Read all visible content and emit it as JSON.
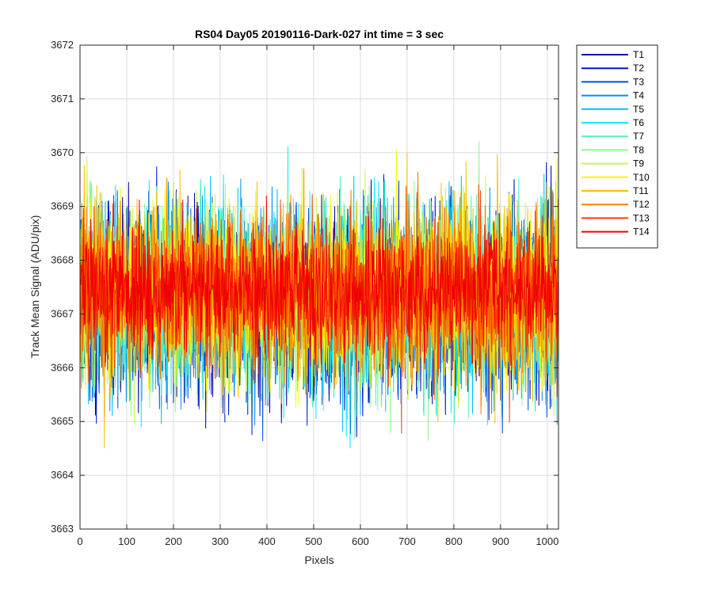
{
  "chart_data": {
    "type": "line",
    "title": "RS04 Day05 20190116-Dark-027 int time = 3 sec",
    "xlabel": "Pixels",
    "ylabel": "Track Mean Signal (ADU/pix)",
    "xlim": [
      0,
      1024
    ],
    "ylim": [
      3663,
      3672
    ],
    "x_ticks": [
      0,
      100,
      200,
      300,
      400,
      500,
      600,
      700,
      800,
      900,
      1000
    ],
    "y_ticks": [
      3663,
      3664,
      3665,
      3666,
      3667,
      3668,
      3669,
      3670,
      3671,
      3672
    ],
    "grid": true,
    "legend_position": "outside-top-right",
    "x_range": [
      1,
      1024
    ],
    "series": [
      {
        "name": "T1",
        "color": "#0000AA",
        "mean": 3667.2,
        "amplitude": 1.1,
        "seed": 11
      },
      {
        "name": "T2",
        "color": "#0018C8",
        "mean": 3667.2,
        "amplitude": 1.1,
        "seed": 23
      },
      {
        "name": "T3",
        "color": "#0050E0",
        "mean": 3667.2,
        "amplitude": 1.1,
        "seed": 37
      },
      {
        "name": "T4",
        "color": "#0090F0",
        "mean": 3667.3,
        "amplitude": 1.1,
        "seed": 41
      },
      {
        "name": "T5",
        "color": "#00C0F8",
        "mean": 3667.3,
        "amplitude": 1.1,
        "seed": 53
      },
      {
        "name": "T6",
        "color": "#10E8F0",
        "mean": 3667.3,
        "amplitude": 1.1,
        "seed": 67
      },
      {
        "name": "T7",
        "color": "#50F0C0",
        "mean": 3667.3,
        "amplitude": 1.1,
        "seed": 71
      },
      {
        "name": "T8",
        "color": "#90F890",
        "mean": 3667.4,
        "amplitude": 1.1,
        "seed": 83
      },
      {
        "name": "T9",
        "color": "#C8F850",
        "mean": 3667.4,
        "amplitude": 1.1,
        "seed": 97
      },
      {
        "name": "T10",
        "color": "#F8F800",
        "mean": 3667.4,
        "amplitude": 1.1,
        "seed": 101
      },
      {
        "name": "T11",
        "color": "#F8C000",
        "mean": 3667.4,
        "amplitude": 1.1,
        "seed": 113
      },
      {
        "name": "T12",
        "color": "#F88000",
        "mean": 3667.4,
        "amplitude": 1.0,
        "seed": 127
      },
      {
        "name": "T13",
        "color": "#F84000",
        "mean": 3667.4,
        "amplitude": 0.9,
        "seed": 131
      },
      {
        "name": "T14",
        "color": "#F00000",
        "mean": 3667.4,
        "amplitude": 0.8,
        "seed": 149
      }
    ]
  }
}
